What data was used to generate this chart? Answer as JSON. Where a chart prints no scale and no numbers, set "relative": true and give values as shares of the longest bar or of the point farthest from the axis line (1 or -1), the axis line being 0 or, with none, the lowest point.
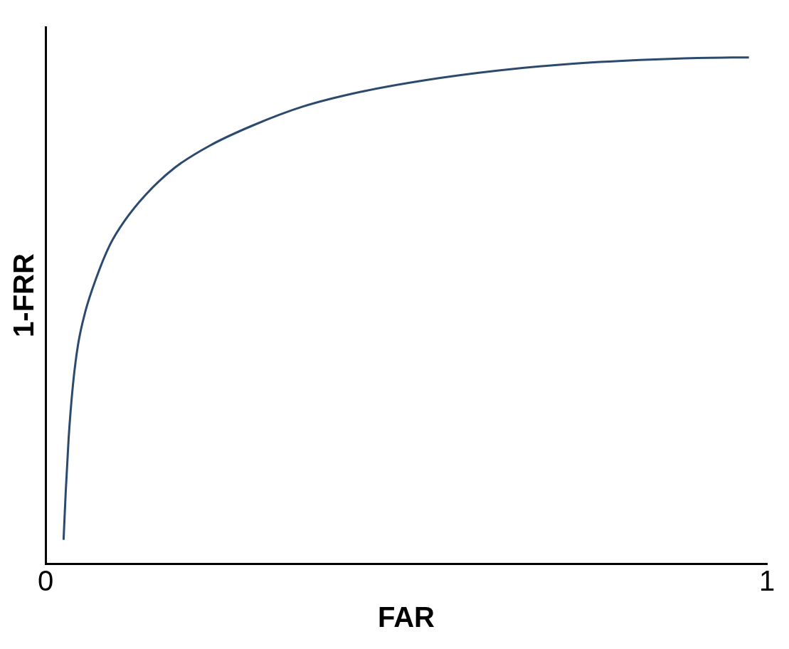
{
  "chart_data": {
    "type": "line",
    "xlabel": "FAR",
    "ylabel": "1-FRR",
    "relative": true,
    "xlim": [
      0,
      1
    ],
    "xticks": [
      0,
      1
    ],
    "grid": false,
    "legend": false,
    "marker": "none",
    "line_style": "solid",
    "series": [
      {
        "color": "#2c4a6e",
        "x": [
          0.025,
          0.028,
          0.032,
          0.038,
          0.045,
          0.055,
          0.07,
          0.089,
          0.109,
          0.139,
          0.179,
          0.228,
          0.288,
          0.357,
          0.437,
          0.526,
          0.626,
          0.725,
          0.824,
          0.904,
          0.975
        ],
        "values": [
          0.047,
          0.142,
          0.247,
          0.353,
          0.432,
          0.497,
          0.563,
          0.629,
          0.676,
          0.729,
          0.782,
          0.826,
          0.866,
          0.903,
          0.932,
          0.955,
          0.974,
          0.987,
          0.995,
          0.999,
          1
        ]
      }
    ]
  }
}
